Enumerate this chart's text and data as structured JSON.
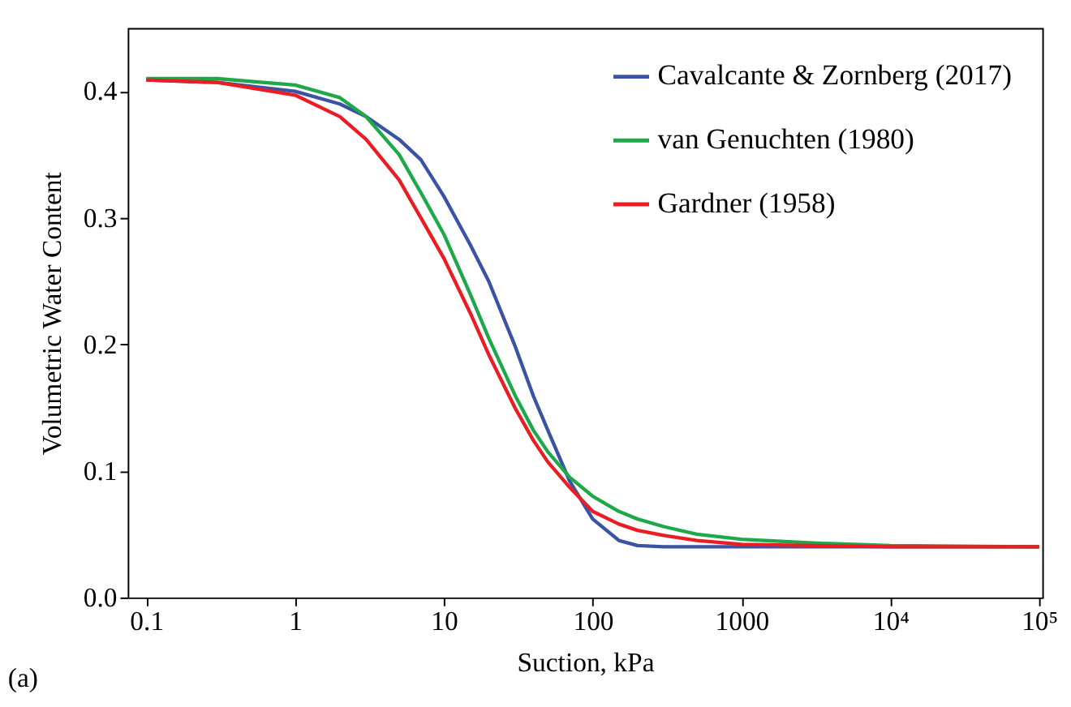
{
  "chart_data": {
    "type": "line",
    "xlabel": "Suction, kPa",
    "ylabel": "Volumetric Water Content",
    "log": "x",
    "grid": false,
    "legend": "top right",
    "marker": "none",
    "line_style": "solid",
    "xlim": [
      0.075,
      105000
    ],
    "ylim": [
      0,
      0.45
    ],
    "xticks": [
      0.1,
      1,
      10,
      100,
      1000,
      {
        "value": 10000,
        "label": "10⁴"
      },
      {
        "value": 100000,
        "label": "10⁵"
      }
    ],
    "yticks": [
      {
        "value": 0,
        "label": "0.0"
      },
      0.1,
      0.2,
      0.3,
      0.4
    ],
    "annotations": [
      "(a)"
    ],
    "series": [
      {
        "name": "Cavalcante & Zornberg (2017)",
        "color": "#3a53a4",
        "x": [
          0.1,
          0.3,
          1,
          2,
          3,
          5,
          7,
          10,
          15,
          20,
          30,
          40,
          50,
          70,
          100,
          150,
          200,
          300,
          1000,
          10000,
          100000
        ],
        "values": [
          0.409,
          0.407,
          0.4,
          0.39,
          0.38,
          0.362,
          0.346,
          0.317,
          0.279,
          0.25,
          0.199,
          0.159,
          0.132,
          0.092,
          0.062,
          0.045,
          0.041,
          0.04,
          0.04,
          0.04,
          0.04
        ]
      },
      {
        "name": "van Genuchten (1980)",
        "color": "#1ea84a",
        "x": [
          0.1,
          0.3,
          1,
          2,
          3,
          5,
          7,
          10,
          15,
          20,
          30,
          40,
          50,
          70,
          100,
          150,
          200,
          300,
          500,
          1000,
          3000,
          10000,
          100000
        ],
        "values": [
          0.41,
          0.41,
          0.405,
          0.395,
          0.38,
          0.35,
          0.32,
          0.287,
          0.24,
          0.205,
          0.16,
          0.132,
          0.115,
          0.095,
          0.08,
          0.068,
          0.062,
          0.056,
          0.05,
          0.046,
          0.043,
          0.041,
          0.04
        ]
      },
      {
        "name": "Gardner (1958)",
        "color": "#ec1c24",
        "x": [
          0.1,
          0.3,
          1,
          2,
          3,
          5,
          7,
          10,
          15,
          20,
          30,
          40,
          50,
          70,
          100,
          150,
          200,
          300,
          500,
          1000,
          10000,
          100000
        ],
        "values": [
          0.409,
          0.407,
          0.397,
          0.38,
          0.362,
          0.33,
          0.3,
          0.268,
          0.225,
          0.192,
          0.15,
          0.124,
          0.107,
          0.087,
          0.068,
          0.058,
          0.053,
          0.049,
          0.045,
          0.042,
          0.04,
          0.04
        ]
      }
    ]
  }
}
